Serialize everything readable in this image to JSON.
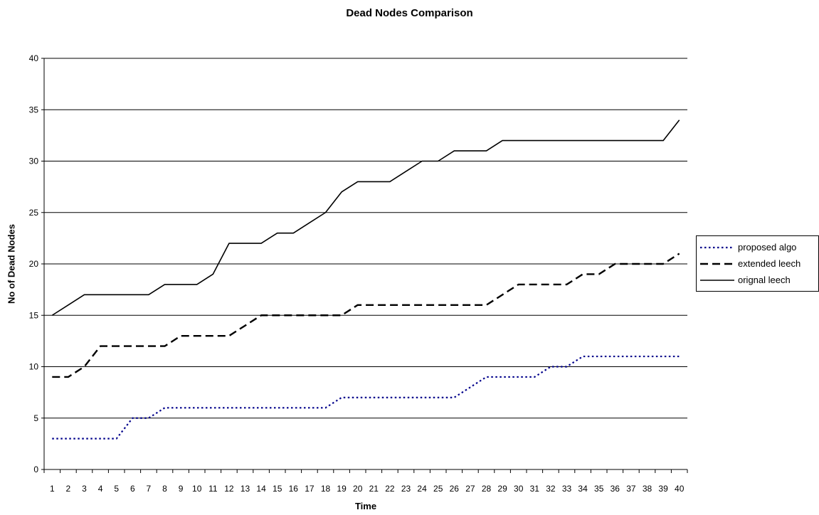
{
  "chart_data": {
    "type": "line",
    "title": "Dead Nodes Comparison",
    "xlabel": "Time",
    "ylabel": "No of Dead Nodes",
    "x": [
      1,
      2,
      3,
      4,
      5,
      6,
      7,
      8,
      9,
      10,
      11,
      12,
      13,
      14,
      15,
      16,
      17,
      18,
      19,
      20,
      21,
      22,
      23,
      24,
      25,
      26,
      27,
      28,
      29,
      30,
      31,
      32,
      33,
      34,
      35,
      36,
      37,
      38,
      39,
      40
    ],
    "ylim": [
      0,
      40
    ],
    "yticks": [
      0,
      5,
      10,
      15,
      20,
      25,
      30,
      35,
      40
    ],
    "grid": true,
    "legend": "right",
    "series": [
      {
        "name": "proposed algo",
        "style": "dotted",
        "color": "#00008b",
        "values": [
          3,
          3,
          3,
          3,
          3,
          5,
          5,
          6,
          6,
          6,
          6,
          6,
          6,
          6,
          6,
          6,
          6,
          6,
          7,
          7,
          7,
          7,
          7,
          7,
          7,
          7,
          8,
          9,
          9,
          9,
          9,
          10,
          10,
          11,
          11,
          11,
          11,
          11,
          11,
          11
        ]
      },
      {
        "name": "extended leech",
        "style": "dashed",
        "color": "#000000",
        "values": [
          9,
          9,
          10,
          12,
          12,
          12,
          12,
          12,
          13,
          13,
          13,
          13,
          14,
          15,
          15,
          15,
          15,
          15,
          15,
          16,
          16,
          16,
          16,
          16,
          16,
          16,
          16,
          16,
          17,
          18,
          18,
          18,
          18,
          19,
          19,
          20,
          20,
          20,
          20,
          21
        ]
      },
      {
        "name": "orignal leech",
        "style": "solid",
        "color": "#000000",
        "values": [
          15,
          16,
          17,
          17,
          17,
          17,
          17,
          18,
          18,
          18,
          19,
          22,
          22,
          22,
          23,
          23,
          24,
          25,
          27,
          28,
          28,
          28,
          29,
          30,
          30,
          31,
          31,
          31,
          32,
          32,
          32,
          32,
          32,
          32,
          32,
          32,
          32,
          32,
          32,
          34
        ]
      }
    ]
  }
}
